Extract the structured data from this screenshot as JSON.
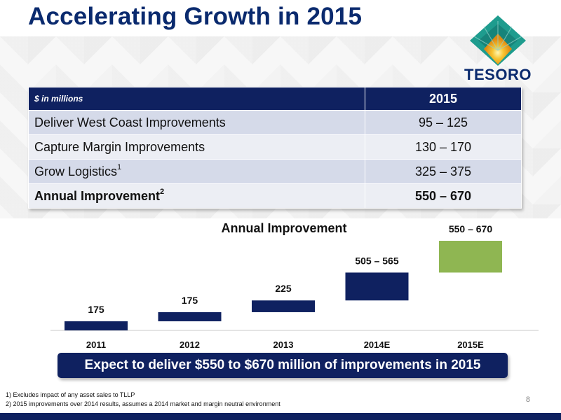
{
  "title": "Accelerating Growth in 2015",
  "logo": {
    "text": "TESORO"
  },
  "table": {
    "unit_header": "$ in millions",
    "year_header": "2015",
    "rows": [
      {
        "label": "Deliver West Coast Improvements",
        "sup": "",
        "value": "95 – 125"
      },
      {
        "label": "Capture Margin Improvements",
        "sup": "",
        "value": "130 – 170"
      },
      {
        "label": "Grow Logistics",
        "sup": "1",
        "value": "325 – 375"
      },
      {
        "label": "Annual Improvement",
        "sup": "2",
        "value": "550 – 670"
      }
    ]
  },
  "chart_data": {
    "type": "bar",
    "subtype": "waterfall",
    "title": "Annual Improvement",
    "categories": [
      "2011",
      "2012",
      "2013",
      "2014E",
      "2015E"
    ],
    "labels": [
      "175",
      "175",
      "225",
      "505 – 565",
      "550 – 670"
    ],
    "segments": [
      {
        "base": 0,
        "value": 175
      },
      {
        "base": 175,
        "value": 175
      },
      {
        "base": 350,
        "value": 225
      },
      {
        "base": 575,
        "value": 535
      },
      {
        "base": 1110,
        "value": 610
      }
    ],
    "colors": [
      "#0f2160",
      "#0f2160",
      "#0f2160",
      "#0f2160",
      "#8fb652"
    ],
    "grid": false
  },
  "callout": "Expect to deliver $550 to $670 million of improvements in 2015",
  "footnotes": [
    "1) Excludes impact of any asset sales to TLLP",
    "2) 2015 improvements over 2014 results, assumes a 2014 market and margin neutral environment"
  ],
  "page_number": "8"
}
